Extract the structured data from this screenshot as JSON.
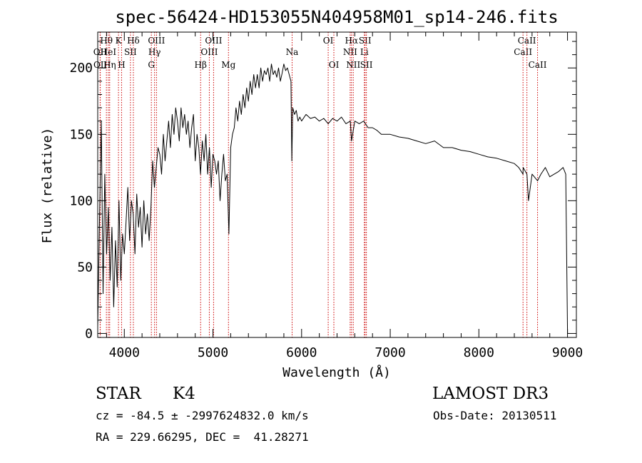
{
  "chart_data": {
    "type": "line",
    "title": "spec-56424-HD153055N404958M01_sp14-246.fits",
    "xlabel": "Wavelength (Å)",
    "ylabel": "Flux (relative)",
    "xlim": [
      3700,
      9100
    ],
    "ylim": [
      -3,
      227
    ],
    "xticks": [
      4000,
      5000,
      6000,
      7000,
      8000,
      9000
    ],
    "yticks": [
      0,
      50,
      100,
      150,
      200
    ],
    "grid": false,
    "series": [
      {
        "color": "#000000",
        "x": [
          3700,
          3720,
          3740,
          3760,
          3780,
          3800,
          3820,
          3840,
          3860,
          3880,
          3900,
          3920,
          3940,
          3960,
          3980,
          4000,
          4020,
          4040,
          4060,
          4080,
          4100,
          4120,
          4140,
          4160,
          4180,
          4200,
          4220,
          4240,
          4260,
          4280,
          4300,
          4320,
          4340,
          4360,
          4380,
          4400,
          4420,
          4440,
          4460,
          4480,
          4500,
          4520,
          4540,
          4560,
          4580,
          4600,
          4620,
          4640,
          4660,
          4680,
          4700,
          4720,
          4740,
          4760,
          4780,
          4800,
          4820,
          4840,
          4860,
          4880,
          4900,
          4920,
          4940,
          4960,
          4980,
          5000,
          5020,
          5040,
          5060,
          5080,
          5100,
          5120,
          5140,
          5160,
          5180,
          5200,
          5220,
          5240,
          5260,
          5280,
          5300,
          5320,
          5340,
          5360,
          5380,
          5400,
          5420,
          5440,
          5460,
          5480,
          5500,
          5520,
          5540,
          5560,
          5580,
          5600,
          5620,
          5640,
          5660,
          5680,
          5700,
          5720,
          5740,
          5760,
          5780,
          5800,
          5820,
          5840,
          5860,
          5880,
          5890,
          5900,
          5920,
          5940,
          5960,
          5980,
          6000,
          6050,
          6100,
          6150,
          6200,
          6250,
          6300,
          6350,
          6400,
          6450,
          6500,
          6550,
          6563,
          6600,
          6650,
          6700,
          6750,
          6800,
          6850,
          6900,
          7000,
          7100,
          7200,
          7300,
          7400,
          7500,
          7600,
          7700,
          7800,
          7900,
          8000,
          8100,
          8200,
          8300,
          8400,
          8450,
          8498,
          8500,
          8542,
          8560,
          8600,
          8662,
          8700,
          8750,
          8800,
          8850,
          8900,
          8950,
          8980,
          9000
        ],
        "y": [
          5,
          85,
          160,
          30,
          120,
          60,
          95,
          40,
          80,
          20,
          70,
          35,
          100,
          40,
          75,
          60,
          85,
          110,
          70,
          100,
          90,
          60,
          105,
          80,
          95,
          65,
          100,
          75,
          90,
          70,
          95,
          130,
          110,
          125,
          140,
          135,
          120,
          150,
          130,
          145,
          160,
          140,
          165,
          150,
          170,
          160,
          145,
          170,
          155,
          165,
          150,
          160,
          140,
          155,
          165,
          130,
          150,
          140,
          120,
          145,
          130,
          150,
          120,
          140,
          110,
          135,
          130,
          120,
          130,
          100,
          120,
          135,
          115,
          120,
          75,
          140,
          150,
          155,
          170,
          160,
          175,
          165,
          180,
          170,
          185,
          175,
          190,
          180,
          195,
          185,
          195,
          185,
          200,
          190,
          198,
          195,
          200,
          190,
          203,
          195,
          198,
          193,
          200,
          190,
          196,
          203,
          198,
          200,
          195,
          190,
          130,
          170,
          165,
          168,
          160,
          163,
          160,
          165,
          162,
          163,
          160,
          162,
          158,
          162,
          160,
          163,
          158,
          160,
          145,
          160,
          158,
          160,
          155,
          155,
          153,
          150,
          150,
          148,
          147,
          145,
          143,
          145,
          140,
          140,
          138,
          137,
          135,
          133,
          132,
          130,
          128,
          125,
          120,
          125,
          120,
          100,
          120,
          115,
          120,
          125,
          118,
          120,
          122,
          125,
          120,
          0
        ]
      }
    ],
    "lines": [
      {
        "label": "OII",
        "x": 3727,
        "row": 2
      },
      {
        "label": "OII",
        "x": 3729,
        "row": 3
      },
      {
        "label": "Hθ",
        "x": 3798,
        "row": 1
      },
      {
        "label": "HeI",
        "x": 3820,
        "row": 2
      },
      {
        "label": "Hη",
        "x": 3835,
        "row": 3
      },
      {
        "label": "K",
        "x": 3934,
        "row": 1
      },
      {
        "label": "H",
        "x": 3969,
        "row": 3
      },
      {
        "label": "SII",
        "x": 4069,
        "row": 2
      },
      {
        "label": "Hδ",
        "x": 4102,
        "row": 1
      },
      {
        "label": "OIII",
        "x": 4363,
        "row": 1
      },
      {
        "label": "Hγ",
        "x": 4341,
        "row": 2
      },
      {
        "label": "G",
        "x": 4305,
        "row": 3
      },
      {
        "label": "Hβ",
        "x": 4861,
        "row": 3
      },
      {
        "label": "OIII",
        "x": 4959,
        "row": 2
      },
      {
        "label": "OIII",
        "x": 5007,
        "row": 1
      },
      {
        "label": "Mg",
        "x": 5175,
        "row": 3
      },
      {
        "label": "Na",
        "x": 5893,
        "row": 2
      },
      {
        "label": "OI",
        "x": 6300,
        "row": 1
      },
      {
        "label": "OI",
        "x": 6364,
        "row": 3
      },
      {
        "label": "NII",
        "x": 6548,
        "row": 2
      },
      {
        "label": "Hα",
        "x": 6563,
        "row": 1
      },
      {
        "label": "NII",
        "x": 6583,
        "row": 3
      },
      {
        "label": "Li",
        "x": 6708,
        "row": 2
      },
      {
        "label": "SII",
        "x": 6716,
        "row": 1
      },
      {
        "label": "SII",
        "x": 6731,
        "row": 3
      },
      {
        "label": "CaII",
        "x": 8498,
        "row": 2
      },
      {
        "label": "CaII",
        "x": 8542,
        "row": 1
      },
      {
        "label": "CaII",
        "x": 8662,
        "row": 3
      }
    ]
  },
  "info": {
    "object_type": "STAR",
    "subclass": "K4",
    "survey": "LAMOST DR3",
    "cz_line": "cz = -84.5 ± -2997624832.0 km/s",
    "obs_date": "Obs-Date: 20130511",
    "radec": "RA = 229.66295, DEC =  41.28271"
  }
}
